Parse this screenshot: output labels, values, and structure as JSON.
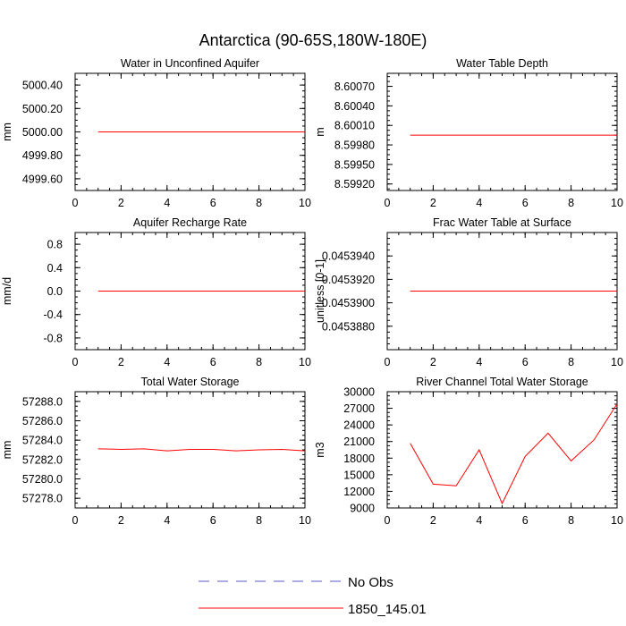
{
  "figure_title": "Antarctica (90-65S,180W-180E)",
  "legend": [
    {
      "label": "No Obs",
      "color": "#5a5ac8",
      "dashed": true
    },
    {
      "label": "1850_145.01",
      "color": "#ff0000",
      "dashed": false
    }
  ],
  "chart_data": [
    {
      "type": "line",
      "title": "Water in Unconfined Aquifer",
      "ylabel": "mm",
      "xlim": [
        0,
        10
      ],
      "ylim": [
        4999.5,
        5000.5
      ],
      "xticks": [
        0,
        2,
        4,
        6,
        8,
        10
      ],
      "yticks": [
        4999.6,
        4999.8,
        5000.0,
        5000.2,
        5000.4
      ],
      "ytick_labels": [
        "4999.60",
        "4999.80",
        "5000.00",
        "5000.20",
        "5000.40"
      ],
      "series": [
        {
          "name": "1850_145.01",
          "color": "#ff0000",
          "x": [
            1,
            2,
            3,
            4,
            5,
            6,
            7,
            8,
            9,
            10
          ],
          "values": [
            5000.0,
            5000.0,
            5000.0,
            5000.0,
            5000.0,
            5000.0,
            5000.0,
            5000.0,
            5000.0,
            5000.0
          ]
        }
      ]
    },
    {
      "type": "line",
      "title": "Water Table Depth",
      "ylabel": "m",
      "xlim": [
        0,
        10
      ],
      "ylim": [
        8.5991,
        8.6009
      ],
      "xticks": [
        0,
        2,
        4,
        6,
        8,
        10
      ],
      "yticks": [
        8.5992,
        8.5995,
        8.5998,
        8.6001,
        8.6004,
        8.6007
      ],
      "ytick_labels": [
        "8.59920",
        "8.59950",
        "8.59980",
        "8.60010",
        "8.60040",
        "8.60070"
      ],
      "series": [
        {
          "name": "1850_145.01",
          "color": "#ff0000",
          "x": [
            1,
            2,
            3,
            4,
            5,
            6,
            7,
            8,
            9,
            10
          ],
          "values": [
            8.59995,
            8.59995,
            8.59995,
            8.59995,
            8.59995,
            8.59995,
            8.59995,
            8.59995,
            8.59995,
            8.59995
          ]
        }
      ]
    },
    {
      "type": "line",
      "title": "Aquifer Recharge Rate",
      "ylabel": "mm/d",
      "xlim": [
        0,
        10
      ],
      "ylim": [
        -1.0,
        1.0
      ],
      "xticks": [
        0,
        2,
        4,
        6,
        8,
        10
      ],
      "yticks": [
        -0.8,
        -0.4,
        0.0,
        0.4,
        0.8
      ],
      "ytick_labels": [
        "-0.8",
        "-0.4",
        "0.0",
        "0.4",
        "0.8"
      ],
      "series": [
        {
          "name": "1850_145.01",
          "color": "#ff0000",
          "x": [
            1,
            2,
            3,
            4,
            5,
            6,
            7,
            8,
            9,
            10
          ],
          "values": [
            0,
            0,
            0,
            0,
            0,
            0,
            0,
            0,
            0,
            0
          ]
        }
      ]
    },
    {
      "type": "line",
      "title": "Frac Water Table at Surface",
      "ylabel": "unitless [0-1]",
      "xlim": [
        0,
        10
      ],
      "ylim": [
        0.045386,
        0.045396
      ],
      "xticks": [
        0,
        2,
        4,
        6,
        8,
        10
      ],
      "yticks": [
        0.045388,
        0.04539,
        0.045392,
        0.045394
      ],
      "ytick_labels": [
        "0.0453880",
        "0.0453900",
        "0.0453920",
        "0.0453940"
      ],
      "series": [
        {
          "name": "1850_145.01",
          "color": "#ff0000",
          "x": [
            1,
            2,
            3,
            4,
            5,
            6,
            7,
            8,
            9,
            10
          ],
          "values": [
            0.045391,
            0.045391,
            0.045391,
            0.045391,
            0.045391,
            0.045391,
            0.045391,
            0.045391,
            0.045391,
            0.045391
          ]
        }
      ]
    },
    {
      "type": "line",
      "title": "Total Water Storage",
      "ylabel": "mm",
      "xlim": [
        0,
        10
      ],
      "ylim": [
        57277.0,
        57289.0
      ],
      "xticks": [
        0,
        2,
        4,
        6,
        8,
        10
      ],
      "yticks": [
        57278.0,
        57280.0,
        57282.0,
        57284.0,
        57286.0,
        57288.0
      ],
      "ytick_labels": [
        "57278.0",
        "57280.0",
        "57282.0",
        "57284.0",
        "57286.0",
        "57288.0"
      ],
      "series": [
        {
          "name": "1850_145.01",
          "color": "#ff0000",
          "x": [
            1,
            2,
            3,
            4,
            5,
            6,
            7,
            8,
            9,
            10
          ],
          "values": [
            57283.1,
            57283.05,
            57283.1,
            57282.9,
            57283.05,
            57283.05,
            57282.9,
            57283.0,
            57283.05,
            57282.9
          ]
        }
      ]
    },
    {
      "type": "line",
      "title": "River Channel Total Water Storage",
      "ylabel": "m3",
      "xlim": [
        0,
        10
      ],
      "ylim": [
        9000,
        30000
      ],
      "xticks": [
        0,
        2,
        4,
        6,
        8,
        10
      ],
      "yticks": [
        9000,
        12000,
        15000,
        18000,
        21000,
        24000,
        27000,
        30000
      ],
      "ytick_labels": [
        "9000",
        "12000",
        "15000",
        "18000",
        "21000",
        "24000",
        "27000",
        "30000"
      ],
      "series": [
        {
          "name": "1850_145.01",
          "color": "#ff0000",
          "x": [
            1,
            2,
            3,
            4,
            5,
            6,
            7,
            8,
            9,
            10
          ],
          "values": [
            20700,
            13300,
            13000,
            19500,
            9800,
            18300,
            22500,
            17500,
            21300,
            27800
          ]
        }
      ]
    }
  ]
}
